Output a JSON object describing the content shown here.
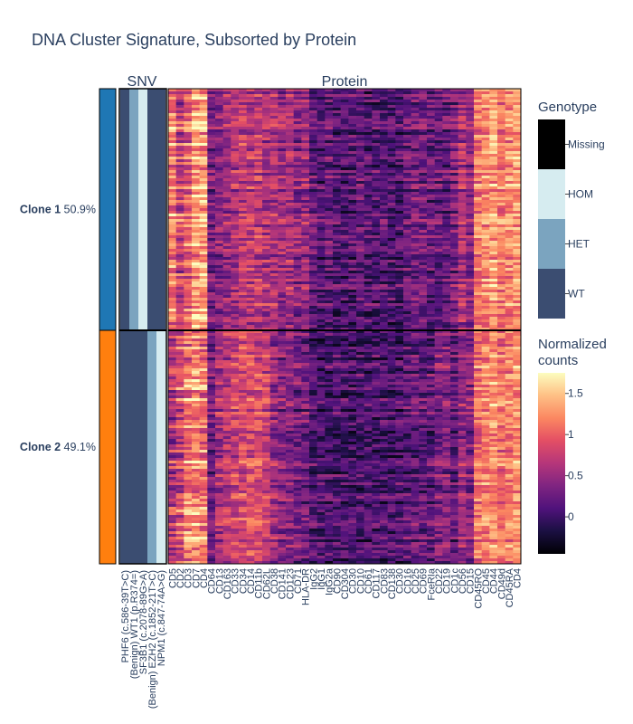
{
  "chart_data": {
    "type": "heatmap",
    "title": "DNA Cluster Signature, Subsorted by Protein",
    "panels": {
      "snv_title": "SNV",
      "protein_title": "Protein"
    },
    "clones": [
      {
        "name": "Clone 1",
        "percent": "50.9%",
        "fraction": 0.509,
        "color": "#1f77b4"
      },
      {
        "name": "Clone 2",
        "percent": "49.1%",
        "fraction": 0.491,
        "color": "#ff7f0e"
      }
    ],
    "snv_variants": [
      "PHF6 (c.586-39T>C)",
      "(Benign) WT1 (p.R374=)",
      "SF3B1 (c.2078-89G>A)",
      "(Benign) EZH2 (c.1852-21T>C)",
      "NPM1 (c.847-74A>G)"
    ],
    "snv_genotypes": [
      [
        "WT",
        "HET",
        "HOM",
        "WT",
        "WT"
      ],
      [
        "WT",
        "WT",
        "WT",
        "HET",
        "HOM"
      ]
    ],
    "proteins": [
      "CD5",
      "CD2",
      "CD3",
      "CD7",
      "CD4",
      "CD64",
      "CD13",
      "CD163",
      "CD33",
      "CD34",
      "CD14",
      "CD11b",
      "CD62L",
      "CD38",
      "CD141",
      "CD123",
      "CD71",
      "HLA-DR",
      "IgG2",
      "IgG1",
      "IgG2a",
      "CD90",
      "CD304",
      "CD30",
      "CD10",
      "CD61",
      "CD117",
      "CD83",
      "CD138",
      "CD30",
      "CD16",
      "CD25",
      "CD69",
      "FceRIa",
      "CD22",
      "CD19",
      "CD1c",
      "CD56",
      "CD15",
      "CD45RO",
      "CD45",
      "CD44",
      "CD49d",
      "CD45RA",
      "CD4"
    ],
    "protein_profile": {
      "Clone 1": [
        1.0,
        0.6,
        0.8,
        1.2,
        1.2,
        0.3,
        0.4,
        0.5,
        0.6,
        0.7,
        0.7,
        0.7,
        0.6,
        0.6,
        0.5,
        0.6,
        0.4,
        0.5,
        0.2,
        0.1,
        0.2,
        0.1,
        0.1,
        0.1,
        0.2,
        0.1,
        0.1,
        0.1,
        0.1,
        0.1,
        0.2,
        0.3,
        0.3,
        0.2,
        0.2,
        0.2,
        0.3,
        0.6,
        0.4,
        1.1,
        1.2,
        1.3,
        1.1,
        1.2,
        1.3
      ],
      "Clone 2": [
        0.5,
        0.7,
        1.0,
        1.1,
        1.0,
        0.3,
        0.6,
        0.7,
        0.8,
        0.9,
        0.9,
        0.9,
        0.8,
        0.5,
        0.4,
        0.4,
        0.3,
        0.3,
        0.1,
        0.1,
        0.1,
        0.1,
        0.1,
        0.1,
        0.1,
        0.1,
        0.1,
        0.1,
        0.1,
        0.1,
        0.2,
        0.2,
        0.2,
        0.2,
        0.4,
        0.4,
        0.2,
        0.5,
        0.4,
        1.1,
        1.2,
        1.3,
        1.1,
        1.2,
        1.3
      ]
    },
    "genotype_legend": {
      "title": "Genotype",
      "levels": [
        "Missing",
        "HOM",
        "HET",
        "WT"
      ],
      "colors": {
        "Missing": "#000000",
        "HOM": "#d6ecf0",
        "HET": "#7ba4bf",
        "WT": "#3b4d71"
      }
    },
    "colorbar": {
      "title_line1": "Normalized",
      "title_line2": "counts",
      "range": [
        -0.45,
        1.75
      ],
      "ticks": [
        0,
        0.5,
        1,
        1.5
      ],
      "tick_labels": [
        "0",
        "0.5",
        "1",
        "1.5"
      ],
      "colorscale": "magma"
    }
  }
}
